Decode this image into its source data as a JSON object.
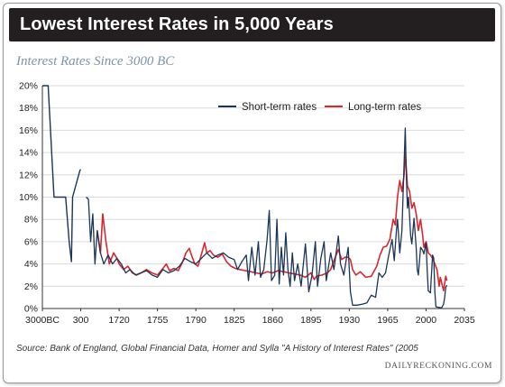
{
  "header": {
    "title": "Lowest Interest Rates in 5,000 Years",
    "subtitle": "Interest Rates Since 3000 BC"
  },
  "footer": {
    "source": "Source: Bank of England, Global Financial Data, Homer and Sylla \"A History of Interest Rates\" (2005",
    "credit": "DAILYRECKONING.COM"
  },
  "colors": {
    "short_term": "#1b3556",
    "long_term": "#d7282f",
    "banner": "#231f20",
    "grid": "#d9d9d9"
  },
  "chart_data": {
    "type": "line",
    "title": "Interest Rates Since 3000 BC",
    "xlabel": "",
    "ylabel": "",
    "x_ticks": [
      "3000BC",
      "300",
      "1720",
      "1755",
      "1790",
      "1825",
      "1860",
      "1895",
      "1930",
      "1965",
      "2000",
      "2035"
    ],
    "y_ticks": [
      "0%",
      "2%",
      "4%",
      "6%",
      "8%",
      "10%",
      "12%",
      "14%",
      "16%",
      "18%",
      "20%"
    ],
    "ylim": [
      0,
      20
    ],
    "grid": true,
    "legend_position": "top-right",
    "early_x_scale_note_hidden": false,
    "series": [
      {
        "name": "Short-term rates",
        "points": [
          [
            "3000BC",
            20
          ],
          [
            "-2500",
            20
          ],
          [
            "-2000",
            10
          ],
          [
            "-1500",
            10
          ],
          [
            "-1000",
            10
          ],
          [
            "-700",
            6
          ],
          [
            "-500",
            4.2
          ],
          [
            "-400",
            10
          ],
          [
            "200",
            12.3
          ],
          [
            "280",
            12.5
          ]
        ],
        "modern": [
          [
            1690,
            10
          ],
          [
            1692,
            9.8
          ],
          [
            1694,
            6
          ],
          [
            1696,
            8.5
          ],
          [
            1698,
            4
          ],
          [
            1700,
            7
          ],
          [
            1703,
            5
          ],
          [
            1706,
            4
          ],
          [
            1710,
            4.8
          ],
          [
            1714,
            4
          ],
          [
            1718,
            4.5
          ],
          [
            1722,
            4
          ],
          [
            1726,
            3.2
          ],
          [
            1730,
            3.5
          ],
          [
            1735,
            3
          ],
          [
            1740,
            3.2
          ],
          [
            1745,
            3.4
          ],
          [
            1750,
            3
          ],
          [
            1755,
            2.8
          ],
          [
            1760,
            3.5
          ],
          [
            1765,
            3.2
          ],
          [
            1770,
            3.4
          ],
          [
            1775,
            3.8
          ],
          [
            1780,
            4.5
          ],
          [
            1785,
            4.2
          ],
          [
            1790,
            4
          ],
          [
            1795,
            4.5
          ],
          [
            1800,
            5
          ],
          [
            1805,
            4.5
          ],
          [
            1810,
            4.8
          ],
          [
            1815,
            5
          ],
          [
            1820,
            4.6
          ],
          [
            1825,
            4.4
          ],
          [
            1828,
            3.5
          ],
          [
            1832,
            4.2
          ],
          [
            1836,
            4.8
          ],
          [
            1838,
            2.5
          ],
          [
            1841,
            5.5
          ],
          [
            1844,
            3
          ],
          [
            1847,
            6
          ],
          [
            1849,
            2.8
          ],
          [
            1852,
            3.5
          ],
          [
            1855,
            6.2
          ],
          [
            1857,
            8.8
          ],
          [
            1859,
            2.5
          ],
          [
            1862,
            3
          ],
          [
            1864,
            8
          ],
          [
            1866,
            2.2
          ],
          [
            1868,
            5.5
          ],
          [
            1870,
            3
          ],
          [
            1872,
            6.8
          ],
          [
            1874,
            3.5
          ],
          [
            1876,
            2
          ],
          [
            1878,
            5
          ],
          [
            1880,
            2.5
          ],
          [
            1883,
            4
          ],
          [
            1886,
            2
          ],
          [
            1890,
            5.8
          ],
          [
            1893,
            1.5
          ],
          [
            1896,
            3
          ],
          [
            1899,
            6
          ],
          [
            1901,
            2
          ],
          [
            1904,
            4.5
          ],
          [
            1907,
            6
          ],
          [
            1909,
            2.5
          ],
          [
            1913,
            5
          ],
          [
            1916,
            3.5
          ],
          [
            1920,
            6.5
          ],
          [
            1922,
            4
          ],
          [
            1925,
            3
          ],
          [
            1929,
            5.5
          ],
          [
            1931,
            1.5
          ],
          [
            1933,
            0.3
          ],
          [
            1937,
            0.3
          ],
          [
            1942,
            0.4
          ],
          [
            1946,
            0.5
          ],
          [
            1950,
            1.2
          ],
          [
            1954,
            1
          ],
          [
            1957,
            3.2
          ],
          [
            1960,
            2.8
          ],
          [
            1963,
            3.2
          ],
          [
            1966,
            4.8
          ],
          [
            1969,
            6.2
          ],
          [
            1971,
            4.3
          ],
          [
            1973,
            7
          ],
          [
            1974,
            8
          ],
          [
            1976,
            5
          ],
          [
            1978,
            7
          ],
          [
            1979,
            10
          ],
          [
            1980,
            13
          ],
          [
            1981,
            16.2
          ],
          [
            1982,
            12
          ],
          [
            1983,
            9
          ],
          [
            1984,
            10
          ],
          [
            1986,
            6.5
          ],
          [
            1987,
            5.8
          ],
          [
            1989,
            8.1
          ],
          [
            1991,
            5.5
          ],
          [
            1992,
            3.5
          ],
          [
            1993,
            3
          ],
          [
            1995,
            5.5
          ],
          [
            1997,
            5.2
          ],
          [
            1998,
            4.9
          ],
          [
            2000,
            5.9
          ],
          [
            2001,
            3.5
          ],
          [
            2002,
            1.6
          ],
          [
            2004,
            1.4
          ],
          [
            2006,
            4.8
          ],
          [
            2007,
            4.5
          ],
          [
            2008,
            1.5
          ],
          [
            2009,
            0.15
          ],
          [
            2012,
            0.1
          ],
          [
            2014,
            0.05
          ],
          [
            2015,
            0.2
          ],
          [
            2016,
            0.4
          ],
          [
            2017,
            1
          ],
          [
            2018,
            1.9
          ],
          [
            2019,
            2.1
          ]
        ]
      },
      {
        "name": "Long-term rates",
        "modern": [
          [
            1700,
            7
          ],
          [
            1703,
            5
          ],
          [
            1705,
            8.5
          ],
          [
            1708,
            6
          ],
          [
            1711,
            4
          ],
          [
            1715,
            5
          ],
          [
            1718,
            4.5
          ],
          [
            1720,
            4
          ],
          [
            1724,
            3.5
          ],
          [
            1728,
            3.8
          ],
          [
            1732,
            3.2
          ],
          [
            1736,
            3
          ],
          [
            1740,
            3.2
          ],
          [
            1745,
            3.5
          ],
          [
            1750,
            3.2
          ],
          [
            1755,
            3
          ],
          [
            1760,
            3.6
          ],
          [
            1763,
            4
          ],
          [
            1766,
            3.4
          ],
          [
            1770,
            3.6
          ],
          [
            1774,
            3.4
          ],
          [
            1778,
            4.2
          ],
          [
            1781,
            5
          ],
          [
            1784,
            5.4
          ],
          [
            1786,
            4.8
          ],
          [
            1789,
            4
          ],
          [
            1792,
            3.8
          ],
          [
            1796,
            5.2
          ],
          [
            1798,
            5.9
          ],
          [
            1800,
            5
          ],
          [
            1803,
            5.2
          ],
          [
            1806,
            4.8
          ],
          [
            1810,
            4.6
          ],
          [
            1814,
            4.9
          ],
          [
            1818,
            4.2
          ],
          [
            1822,
            3.8
          ],
          [
            1826,
            3.6
          ],
          [
            1830,
            3.5
          ],
          [
            1835,
            3.4
          ],
          [
            1840,
            3.3
          ],
          [
            1845,
            3.2
          ],
          [
            1850,
            3.1
          ],
          [
            1855,
            3.3
          ],
          [
            1860,
            3.2
          ],
          [
            1865,
            3.4
          ],
          [
            1870,
            3.3
          ],
          [
            1875,
            3.2
          ],
          [
            1880,
            3.1
          ],
          [
            1885,
            3
          ],
          [
            1890,
            2.8
          ],
          [
            1895,
            3.2
          ],
          [
            1898,
            2.6
          ],
          [
            1900,
            2.9
          ],
          [
            1905,
            3
          ],
          [
            1910,
            3.2
          ],
          [
            1913,
            3.5
          ],
          [
            1916,
            4.3
          ],
          [
            1918,
            4.8
          ],
          [
            1920,
            5.3
          ],
          [
            1923,
            4.4
          ],
          [
            1926,
            4.6
          ],
          [
            1929,
            4.6
          ],
          [
            1931,
            4.4
          ],
          [
            1933,
            3.5
          ],
          [
            1936,
            3
          ],
          [
            1940,
            3.3
          ],
          [
            1945,
            2.8
          ],
          [
            1950,
            2.9
          ],
          [
            1955,
            3.8
          ],
          [
            1958,
            4.8
          ],
          [
            1961,
            5.5
          ],
          [
            1964,
            5.6
          ],
          [
            1967,
            6.2
          ],
          [
            1970,
            8
          ],
          [
            1972,
            7.5
          ],
          [
            1974,
            10
          ],
          [
            1976,
            11.5
          ],
          [
            1978,
            10.5
          ],
          [
            1980,
            12
          ],
          [
            1981,
            14
          ],
          [
            1982,
            12.5
          ],
          [
            1983,
            11
          ],
          [
            1985,
            10.5
          ],
          [
            1987,
            9
          ],
          [
            1989,
            9.5
          ],
          [
            1991,
            8.5
          ],
          [
            1993,
            7
          ],
          [
            1995,
            8
          ],
          [
            1997,
            6.5
          ],
          [
            1998,
            5.5
          ],
          [
            2000,
            6
          ],
          [
            2002,
            5
          ],
          [
            2004,
            4.8
          ],
          [
            2006,
            4.5
          ],
          [
            2008,
            4
          ],
          [
            2010,
            3.5
          ],
          [
            2012,
            2
          ],
          [
            2013,
            2.8
          ],
          [
            2015,
            2
          ],
          [
            2016,
            1.6
          ],
          [
            2018,
            2.9
          ],
          [
            2019,
            2.5
          ]
        ]
      }
    ]
  }
}
